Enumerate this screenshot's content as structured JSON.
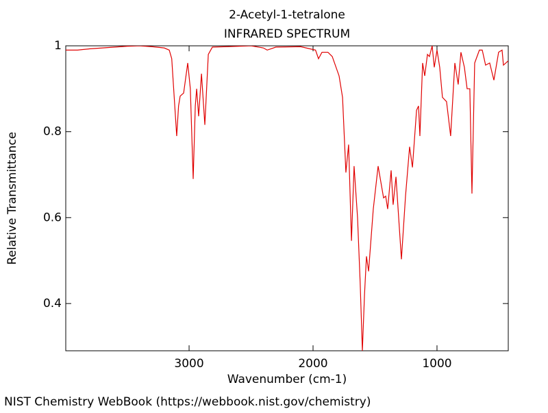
{
  "chart_data": {
    "type": "line",
    "title": "2-Acetyl-1-tetralone",
    "subtitle": "INFRARED SPECTRUM",
    "x_label": "Wavenumber (cm-1)",
    "y_label": "Relative Transmittance",
    "credit": "NIST Chemistry WebBook (https://webbook.nist.gov/chemistry)",
    "xlim": [
      3995,
      425
    ],
    "ylim": [
      0.29,
      1
    ],
    "xticks": [
      3000,
      2000,
      1000
    ],
    "yticks": [
      0.4,
      0.6,
      0.8,
      1
    ],
    "series": [
      {
        "name": "2-Acetyl-1-tetralone",
        "color": "#e00000",
        "x": [
          3995,
          3900,
          3800,
          3700,
          3600,
          3500,
          3400,
          3300,
          3200,
          3160,
          3140,
          3120,
          3100,
          3085,
          3072,
          3044,
          3011,
          2990,
          2967,
          2950,
          2939,
          2923,
          2900,
          2873,
          2845,
          2812,
          2700,
          2500,
          2400,
          2370,
          2300,
          2100,
          1980,
          1956,
          1928,
          1880,
          1845,
          1790,
          1762,
          1735,
          1713,
          1690,
          1669,
          1641,
          1620,
          1602,
          1585,
          1569,
          1552,
          1514,
          1475,
          1431,
          1414,
          1398,
          1370,
          1354,
          1331,
          1287,
          1254,
          1221,
          1198,
          1165,
          1149,
          1138,
          1116,
          1099,
          1077,
          1061,
          1039,
          1022,
          1000,
          978,
          956,
          923,
          890,
          856,
          829,
          807,
          779,
          757,
          735,
          718,
          696,
          658,
          635,
          608,
          575,
          541,
          503,
          475,
          464,
          425
        ],
        "values": [
          0.99,
          0.99,
          0.993,
          0.995,
          0.997,
          0.999,
          1.0,
          0.998,
          0.995,
          0.99,
          0.97,
          0.88,
          0.79,
          0.86,
          0.883,
          0.89,
          0.96,
          0.9,
          0.69,
          0.86,
          0.9,
          0.836,
          0.935,
          0.816,
          0.98,
          0.997,
          0.998,
          1.0,
          0.995,
          0.99,
          0.997,
          0.998,
          0.99,
          0.97,
          0.985,
          0.985,
          0.975,
          0.93,
          0.88,
          0.705,
          0.77,
          0.546,
          0.72,
          0.6,
          0.45,
          0.29,
          0.42,
          0.51,
          0.475,
          0.62,
          0.72,
          0.646,
          0.65,
          0.62,
          0.71,
          0.63,
          0.695,
          0.503,
          0.65,
          0.765,
          0.717,
          0.85,
          0.86,
          0.79,
          0.96,
          0.93,
          0.98,
          0.975,
          1.0,
          0.95,
          0.99,
          0.95,
          0.88,
          0.87,
          0.79,
          0.96,
          0.91,
          0.985,
          0.95,
          0.9,
          0.9,
          0.656,
          0.96,
          0.99,
          0.99,
          0.955,
          0.96,
          0.92,
          0.985,
          0.99,
          0.955,
          0.965
        ]
      }
    ]
  }
}
